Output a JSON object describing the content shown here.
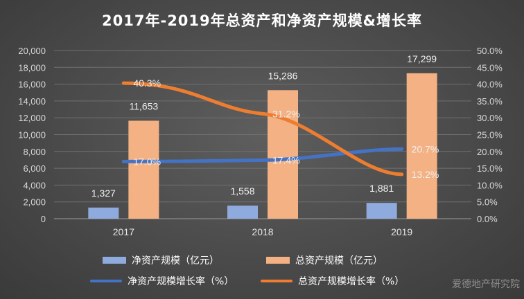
{
  "colors": {
    "net_asset_bar": "#8faadc",
    "total_asset_bar": "#f4b183",
    "net_growth_line": "#4472c4",
    "total_growth_line": "#ed7d31"
  },
  "watermark": "爱德地产研究院",
  "chart_data": {
    "type": "bar",
    "title": "2017年-2019年总资产和净资产规模&增长率",
    "categories": [
      "2017",
      "2018",
      "2019"
    ],
    "ylim": [
      0,
      20000
    ],
    "y2lim": [
      0,
      50
    ],
    "yticks": [
      "0",
      "2,000",
      "4,000",
      "6,000",
      "8,000",
      "10,000",
      "12,000",
      "14,000",
      "16,000",
      "18,000",
      "20,000"
    ],
    "y2ticks": [
      "0.0%",
      "5.0%",
      "10.0%",
      "15.0%",
      "20.0%",
      "25.0%",
      "30.0%",
      "35.0%",
      "40.0%",
      "45.0%",
      "50.0%"
    ],
    "grid": true,
    "legend_position": "bottom",
    "series": [
      {
        "name": "净资产规模（亿元）",
        "kind": "bar",
        "axis": "left",
        "values": [
          1327,
          1558,
          1881
        ],
        "labels": [
          "1,327",
          "1,558",
          "1,881"
        ]
      },
      {
        "name": "总资产规模（亿元）",
        "kind": "bar",
        "axis": "left",
        "values": [
          11653,
          15286,
          17299
        ],
        "labels": [
          "11,653",
          "15,286",
          "17,299"
        ]
      },
      {
        "name": "净资产规模增长率（%）",
        "kind": "line",
        "axis": "right",
        "values": [
          17.0,
          17.4,
          20.7
        ],
        "labels": [
          "17.0%",
          "17.4%",
          "20.7%"
        ]
      },
      {
        "name": "总资产规模增长率（%）",
        "kind": "line",
        "axis": "right",
        "values": [
          40.3,
          31.2,
          13.2
        ],
        "labels": [
          "40.3%",
          "31.2%",
          "13.2%"
        ]
      }
    ]
  }
}
